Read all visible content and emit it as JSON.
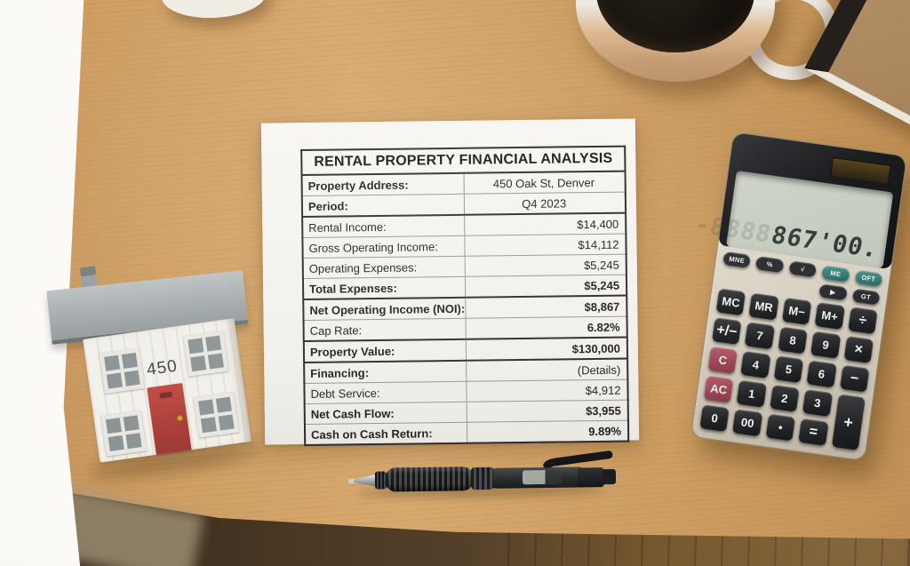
{
  "scene": {
    "desk_items": [
      "partial white cup",
      "coffee cup",
      "kraft notebook",
      "wooden house model",
      "financial analysis sheet",
      "desk calculator",
      "black gel pen"
    ],
    "colors": {
      "wood": "#cf9f63",
      "paper": "#f5f4f0",
      "calculator_body": "#d8d2c5",
      "calculator_teal": "#3a837d",
      "calculator_pink": "#a34e60",
      "house_roof": "#9aa0a2",
      "house_door": "#b8453e",
      "lcd": "#c8cdc0"
    }
  },
  "document": {
    "title": "RENTAL PROPERTY FINANCIAL ANALYSIS",
    "rows": [
      {
        "label": "Property Address:",
        "value": "450 Oak St, Denver",
        "label_bold": true,
        "align": "center"
      },
      {
        "label": "Period:",
        "value": "Q4 2023",
        "label_bold": true,
        "align": "center",
        "thick_below": true
      },
      {
        "label": "Rental Income:",
        "value": "$14,400"
      },
      {
        "label": "Gross Operating Income:",
        "value": "$14,112"
      },
      {
        "label": "Operating Expenses:",
        "value": "$5,245"
      },
      {
        "label": "Total Expenses:",
        "value": "$5,245",
        "label_bold": true,
        "value_bold": true,
        "thick_below": true
      },
      {
        "label": "Net Operating Income (NOI):",
        "value": "$8,867",
        "label_bold": true,
        "value_bold": true
      },
      {
        "label": "Cap Rate:",
        "value": "6.82%",
        "value_bold": true,
        "thick_below": true
      },
      {
        "label": "Property Value:",
        "value": "$130,000",
        "label_bold": true,
        "value_bold": true,
        "thick_below": true
      },
      {
        "label": "Financing:",
        "value": "(Details)",
        "label_bold": true
      },
      {
        "label": "Debt Service:",
        "value": "$4,912"
      },
      {
        "label": "Net Cash Flow:",
        "value": "$3,955",
        "label_bold": true,
        "value_bold": true
      },
      {
        "label": "Cash on Cash Return:",
        "value": "9.89%",
        "label_bold": true,
        "value_bold": true
      }
    ]
  },
  "calculator": {
    "display": {
      "ghost": "-8888",
      "value": "867'00."
    },
    "pill_rows": [
      [
        "MNE",
        "%",
        "√",
        "ME",
        "OFT"
      ],
      [
        "",
        "",
        "",
        "▶",
        "GT"
      ]
    ],
    "key_rows": [
      [
        "MC",
        "MR",
        "M−",
        "M+",
        "÷"
      ],
      [
        "+/−",
        "7",
        "8",
        "9",
        "×"
      ],
      [
        "C",
        "4",
        "5",
        "6",
        "−"
      ],
      [
        "AC",
        "1",
        "2",
        "3",
        "+"
      ],
      [
        "0",
        "00",
        "•",
        "=",
        ""
      ]
    ]
  },
  "house": {
    "number": "450"
  }
}
